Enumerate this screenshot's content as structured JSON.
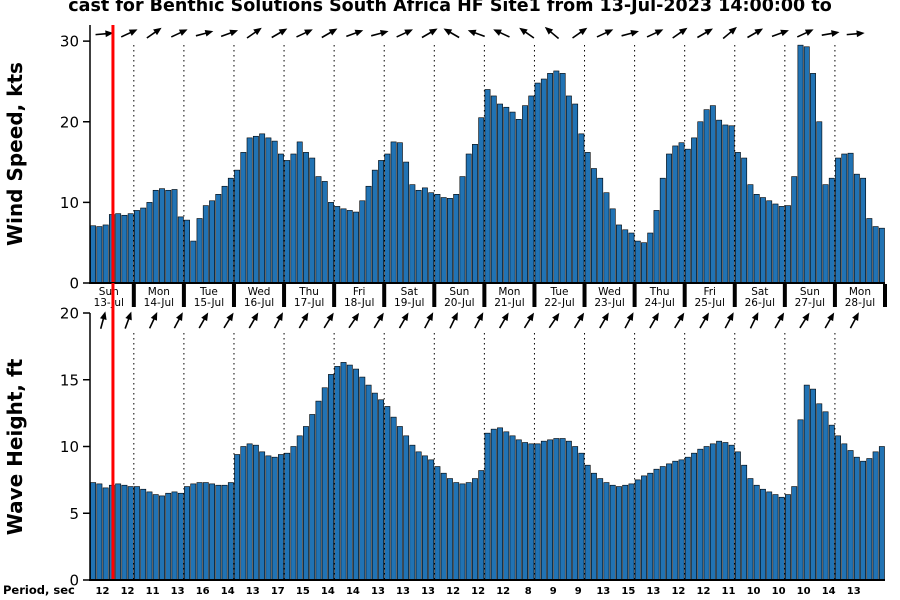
{
  "title": "cast for Benthic Solutions South Africa HF Site1 from 13-Jul-2023 14:00:00 to",
  "colors": {
    "bar_fill": "#2173b4",
    "bar_edge": "#000000",
    "now_line": "#ff0000",
    "axis": "#000000"
  },
  "chart_data": [
    {
      "type": "bar",
      "name": "wind-speed",
      "title": "Wind Speed forecast",
      "ylabel": "Wind Speed, kts",
      "unit": "kts",
      "ylim": [
        0,
        32
      ],
      "yticks": [
        0,
        10,
        20,
        30
      ],
      "interval_hours": 3,
      "values": [
        7.1,
        7.0,
        7.2,
        8.5,
        8.6,
        8.4,
        8.6,
        9.0,
        9.3,
        10.0,
        11.5,
        11.7,
        11.5,
        11.6,
        8.2,
        7.8,
        5.2,
        8.0,
        9.6,
        10.2,
        11.0,
        12.0,
        13.0,
        14.0,
        16.2,
        18.0,
        18.2,
        18.5,
        18.0,
        17.6,
        16.0,
        15.2,
        16.0,
        17.5,
        16.2,
        15.5,
        13.2,
        12.6,
        10.0,
        9.5,
        9.2,
        9.0,
        8.8,
        10.2,
        12.0,
        14.0,
        15.2,
        16.0,
        17.5,
        17.4,
        15.0,
        12.2,
        11.5,
        11.8,
        11.2,
        11.0,
        10.6,
        10.5,
        11.0,
        13.2,
        16.0,
        17.2,
        20.5,
        24.0,
        23.2,
        22.2,
        21.8,
        21.2,
        20.3,
        22.0,
        23.2,
        24.8,
        25.3,
        26.0,
        26.3,
        26.0,
        23.2,
        22.2,
        18.5,
        16.2,
        14.2,
        13.0,
        11.2,
        9.2,
        7.2,
        6.6,
        6.2,
        5.2,
        5.0,
        6.2,
        9.0,
        13.0,
        16.0,
        17.0,
        17.4,
        16.6,
        18.0,
        20.0,
        21.5,
        22.0,
        20.2,
        19.6,
        19.5,
        16.2,
        15.5,
        12.2,
        11.0,
        10.6,
        10.2,
        9.8,
        9.5,
        9.6,
        13.2,
        29.5,
        29.3,
        26.0,
        20.0,
        12.2,
        13.0,
        15.5,
        16.0,
        16.1,
        13.5,
        13.0,
        8.0,
        7.0,
        6.8
      ],
      "direction_arrows_deg": [
        5,
        25,
        35,
        25,
        15,
        20,
        35,
        30,
        25,
        30,
        20,
        15,
        25,
        30,
        150,
        160,
        155,
        145,
        140,
        35,
        25,
        15,
        25,
        35,
        30,
        40,
        30,
        20,
        25,
        10,
        5
      ]
    },
    {
      "type": "bar",
      "name": "wave-height",
      "title": "Wave Height forecast",
      "ylabel": "Wave Height, ft",
      "unit": "ft",
      "ylim": [
        0,
        20
      ],
      "yticks": [
        0,
        5,
        10,
        15,
        20
      ],
      "interval_hours": 3,
      "values": [
        7.3,
        7.2,
        6.9,
        7.1,
        7.2,
        7.1,
        7.0,
        7.0,
        6.8,
        6.6,
        6.4,
        6.3,
        6.5,
        6.6,
        6.5,
        7.0,
        7.2,
        7.3,
        7.3,
        7.2,
        7.1,
        7.1,
        7.3,
        9.4,
        10.0,
        10.2,
        10.1,
        9.6,
        9.3,
        9.2,
        9.4,
        9.5,
        10.0,
        10.8,
        11.5,
        12.4,
        13.4,
        14.4,
        15.4,
        16.0,
        16.3,
        16.1,
        15.8,
        15.2,
        14.6,
        14.0,
        13.5,
        13.0,
        12.2,
        11.5,
        10.8,
        10.1,
        9.6,
        9.3,
        9.0,
        8.5,
        8.0,
        7.6,
        7.3,
        7.2,
        7.3,
        7.6,
        8.2,
        11.0,
        11.3,
        11.4,
        11.1,
        10.8,
        10.5,
        10.3,
        10.2,
        10.2,
        10.4,
        10.5,
        10.6,
        10.6,
        10.4,
        10.0,
        9.5,
        8.6,
        8.0,
        7.6,
        7.3,
        7.1,
        7.0,
        7.1,
        7.2,
        7.5,
        7.8,
        8.0,
        8.3,
        8.5,
        8.7,
        8.9,
        9.0,
        9.2,
        9.5,
        9.8,
        10.0,
        10.2,
        10.4,
        10.3,
        10.1,
        9.6,
        8.6,
        7.6,
        7.1,
        6.8,
        6.6,
        6.4,
        6.2,
        6.4,
        7.0,
        12.0,
        14.6,
        14.3,
        13.2,
        12.6,
        11.6,
        10.8,
        10.2,
        9.7,
        9.2,
        8.9,
        9.1,
        9.6,
        10.0
      ],
      "direction_arrows_deg": [
        75,
        70,
        65,
        62,
        60,
        58,
        60,
        62,
        60,
        58,
        56,
        58,
        60,
        62,
        64,
        62,
        60,
        58,
        56,
        58,
        60,
        62,
        60,
        58,
        60,
        62,
        64,
        60,
        58,
        60,
        62
      ]
    }
  ],
  "x_axis": {
    "days": [
      {
        "weekday": "Sun",
        "date": "13-Jul",
        "highlight": true
      },
      {
        "weekday": "Mon",
        "date": "14-Jul",
        "highlight": false
      },
      {
        "weekday": "Tue",
        "date": "15-Jul",
        "highlight": false
      },
      {
        "weekday": "Wed",
        "date": "16-Jul",
        "highlight": false
      },
      {
        "weekday": "Thu",
        "date": "17-Jul",
        "highlight": false
      },
      {
        "weekday": "Fri",
        "date": "18-Jul",
        "highlight": false
      },
      {
        "weekday": "Sat",
        "date": "19-Jul",
        "highlight": false
      },
      {
        "weekday": "Sun",
        "date": "20-Jul",
        "highlight": false
      },
      {
        "weekday": "Mon",
        "date": "21-Jul",
        "highlight": false
      },
      {
        "weekday": "Tue",
        "date": "22-Jul",
        "highlight": false
      },
      {
        "weekday": "Wed",
        "date": "23-Jul",
        "highlight": false
      },
      {
        "weekday": "Thu",
        "date": "24-Jul",
        "highlight": false
      },
      {
        "weekday": "Fri",
        "date": "25-Jul",
        "highlight": false
      },
      {
        "weekday": "Sat",
        "date": "26-Jul",
        "highlight": false
      },
      {
        "weekday": "Sun",
        "date": "27-Jul",
        "highlight": false
      },
      {
        "weekday": "Mon",
        "date": "28-Jul",
        "highlight": false
      }
    ]
  },
  "period_row": {
    "label": "Period, sec",
    "values": [
      12,
      12,
      11,
      13,
      16,
      14,
      13,
      17,
      15,
      14,
      14,
      13,
      13,
      13,
      12,
      12,
      12,
      8,
      9,
      9,
      13,
      15,
      13,
      12,
      12,
      11,
      10,
      10,
      10,
      14,
      13
    ]
  }
}
